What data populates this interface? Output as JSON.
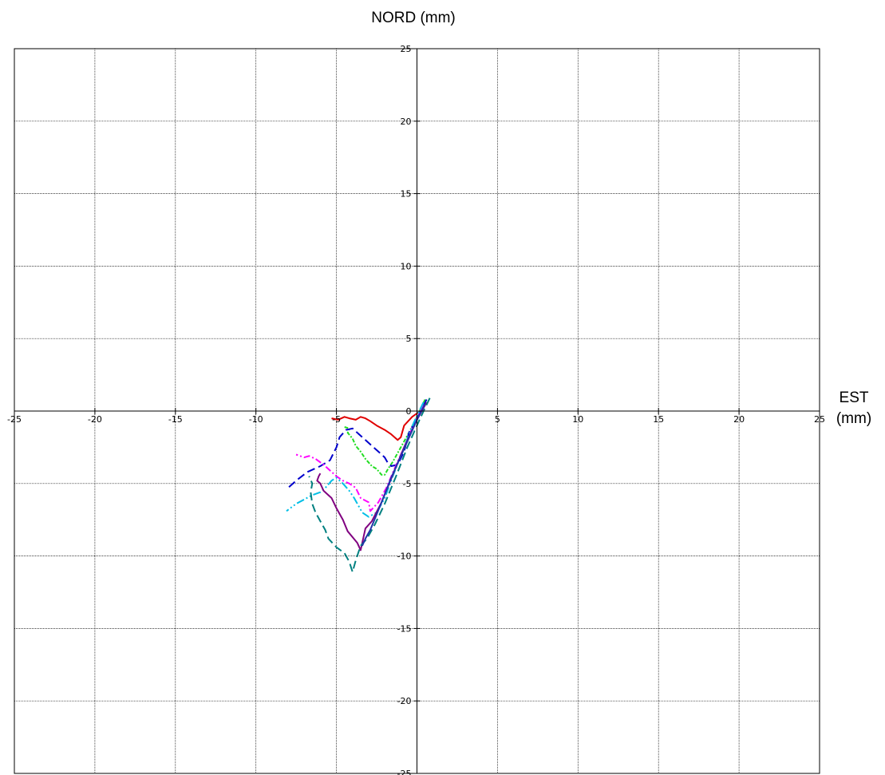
{
  "chart_data": {
    "type": "line",
    "title": "NORD (mm)",
    "xlabel_line1": "EST",
    "xlabel_line2": "(mm)",
    "xlim": [
      -25,
      25
    ],
    "ylim": [
      -25,
      25
    ],
    "x_ticks": [
      -25,
      -20,
      -15,
      -10,
      -5,
      0,
      5,
      10,
      15,
      20,
      25
    ],
    "y_ticks": [
      25,
      20,
      15,
      10,
      5,
      0,
      -5,
      -10,
      -15,
      -20,
      -25
    ],
    "grid": true,
    "series": [
      {
        "color": "#e00000",
        "dash": "",
        "points": [
          [
            0.5,
            0.5
          ],
          [
            0.2,
            0
          ],
          [
            -0.3,
            -0.4
          ],
          [
            -0.8,
            -1.0
          ],
          [
            -1.0,
            -1.8
          ],
          [
            -1.2,
            -2.0
          ],
          [
            -1.6,
            -1.6
          ],
          [
            -2.0,
            -1.3
          ],
          [
            -2.5,
            -1.0
          ],
          [
            -2.9,
            -0.7
          ],
          [
            -3.2,
            -0.5
          ],
          [
            -3.5,
            -0.4
          ],
          [
            -3.8,
            -0.6
          ],
          [
            -4.2,
            -0.5
          ],
          [
            -4.5,
            -0.4
          ],
          [
            -4.9,
            -0.6
          ],
          [
            -5.3,
            -0.5
          ]
        ]
      },
      {
        "color": "#22dd22",
        "dash": "5,2,2,2",
        "points": [
          [
            0.5,
            0.8
          ],
          [
            0,
            -0.4
          ],
          [
            -0.5,
            -1.5
          ],
          [
            -1.0,
            -2.5
          ],
          [
            -1.5,
            -3.5
          ],
          [
            -1.8,
            -4.0
          ],
          [
            -2.0,
            -4.4
          ],
          [
            -2.2,
            -4.4
          ],
          [
            -2.5,
            -4.0
          ],
          [
            -2.8,
            -3.8
          ],
          [
            -3.2,
            -3.3
          ],
          [
            -3.5,
            -2.8
          ],
          [
            -3.8,
            -2.4
          ],
          [
            -4.0,
            -1.9
          ],
          [
            -4.3,
            -1.5
          ],
          [
            -4.2,
            -1.2
          ],
          [
            -4.5,
            -1.1
          ]
        ]
      },
      {
        "color": "#0000cc",
        "dash": "10,5",
        "points": [
          [
            0.6,
            0.8
          ],
          [
            0.1,
            -0.3
          ],
          [
            -0.5,
            -1.5
          ],
          [
            -0.8,
            -2.8
          ],
          [
            -1.2,
            -3.7
          ],
          [
            -1.6,
            -3.8
          ],
          [
            -1.8,
            -3.6
          ],
          [
            -2.0,
            -3.2
          ],
          [
            -2.4,
            -2.8
          ],
          [
            -2.8,
            -2.4
          ],
          [
            -3.2,
            -2.0
          ],
          [
            -3.6,
            -1.6
          ],
          [
            -4.0,
            -1.2
          ],
          [
            -4.4,
            -1.3
          ],
          [
            -4.8,
            -1.8
          ],
          [
            -5.0,
            -2.5
          ],
          [
            -5.4,
            -3.4
          ],
          [
            -6.0,
            -3.8
          ],
          [
            -6.8,
            -4.2
          ],
          [
            -7.5,
            -4.8
          ],
          [
            -8.0,
            -5.3
          ]
        ]
      },
      {
        "color": "#ff00ff",
        "dash": "8,3,2,3",
        "points": [
          [
            0.4,
            0.4
          ],
          [
            -0.2,
            -0.9
          ],
          [
            -0.8,
            -2.5
          ],
          [
            -1.4,
            -4.0
          ],
          [
            -1.9,
            -5.3
          ],
          [
            -2.4,
            -6.3
          ],
          [
            -2.9,
            -6.9
          ],
          [
            -3.0,
            -6.3
          ],
          [
            -3.5,
            -6.0
          ],
          [
            -3.8,
            -5.3
          ],
          [
            -4.2,
            -5.0
          ],
          [
            -4.6,
            -4.8
          ],
          [
            -5.0,
            -4.5
          ],
          [
            -5.5,
            -4.0
          ],
          [
            -5.8,
            -3.7
          ],
          [
            -6.3,
            -3.3
          ],
          [
            -6.7,
            -3.1
          ],
          [
            -7.0,
            -3.2
          ],
          [
            -7.5,
            -3.0
          ]
        ]
      },
      {
        "color": "#00bfe6",
        "dash": "10,3,2,3,2,3",
        "points": [
          [
            0.4,
            0.6
          ],
          [
            -0.2,
            -0.8
          ],
          [
            -0.8,
            -2.5
          ],
          [
            -1.5,
            -4.5
          ],
          [
            -2.0,
            -6.0
          ],
          [
            -2.5,
            -7.0
          ],
          [
            -3.0,
            -7.3
          ],
          [
            -3.4,
            -7.0
          ],
          [
            -3.6,
            -6.6
          ],
          [
            -3.9,
            -6.0
          ],
          [
            -4.2,
            -5.5
          ],
          [
            -4.6,
            -5.0
          ],
          [
            -5.0,
            -4.6
          ],
          [
            -5.3,
            -4.8
          ],
          [
            -5.6,
            -5.2
          ],
          [
            -6.0,
            -5.6
          ],
          [
            -6.5,
            -5.8
          ],
          [
            -7.0,
            -6.1
          ],
          [
            -7.5,
            -6.4
          ],
          [
            -8.1,
            -6.9
          ]
        ]
      },
      {
        "color": "#800080",
        "dash": "",
        "points": [
          [
            0.6,
            0.6
          ],
          [
            0,
            -0.6
          ],
          [
            -0.8,
            -2.5
          ],
          [
            -1.5,
            -4.4
          ],
          [
            -2.2,
            -6.3
          ],
          [
            -2.8,
            -7.6
          ],
          [
            -3.2,
            -8.1
          ],
          [
            -3.3,
            -8.6
          ],
          [
            -3.5,
            -9.6
          ],
          [
            -3.7,
            -9.1
          ],
          [
            -4.0,
            -8.7
          ],
          [
            -4.3,
            -8.3
          ],
          [
            -4.6,
            -7.5
          ],
          [
            -5.0,
            -6.7
          ],
          [
            -5.3,
            -6.0
          ],
          [
            -5.8,
            -5.5
          ],
          [
            -6.0,
            -5.0
          ],
          [
            -6.2,
            -4.8
          ],
          [
            -6.1,
            -4.5
          ],
          [
            -6.0,
            -4.3
          ]
        ]
      },
      {
        "color": "#008080",
        "dash": "10,5",
        "points": [
          [
            0.8,
            0.9
          ],
          [
            0.2,
            -0.5
          ],
          [
            -0.6,
            -2.5
          ],
          [
            -1.3,
            -4.5
          ],
          [
            -2.0,
            -6.4
          ],
          [
            -2.6,
            -7.8
          ],
          [
            -3.1,
            -8.8
          ],
          [
            -3.5,
            -9.3
          ],
          [
            -3.8,
            -10.3
          ],
          [
            -4.0,
            -11.1
          ],
          [
            -4.2,
            -10.4
          ],
          [
            -4.5,
            -9.8
          ],
          [
            -5.0,
            -9.4
          ],
          [
            -5.5,
            -8.8
          ],
          [
            -5.7,
            -8.2
          ],
          [
            -6.0,
            -7.6
          ],
          [
            -6.3,
            -7.0
          ],
          [
            -6.5,
            -6.4
          ],
          [
            -6.6,
            -5.6
          ],
          [
            -6.5,
            -5.0
          ],
          [
            -6.7,
            -4.5
          ]
        ]
      },
      {
        "color": "#2233aa",
        "dash": "",
        "points": [
          [
            0.5,
            0.5
          ],
          [
            0,
            -0.6
          ],
          [
            -0.8,
            -2.6
          ],
          [
            -1.6,
            -4.6
          ],
          [
            -2.2,
            -6.3
          ],
          [
            -2.6,
            -7.4
          ],
          [
            -2.9,
            -8.2
          ],
          [
            -3.2,
            -8.8
          ],
          [
            -3.4,
            -9.3
          ]
        ]
      }
    ]
  }
}
